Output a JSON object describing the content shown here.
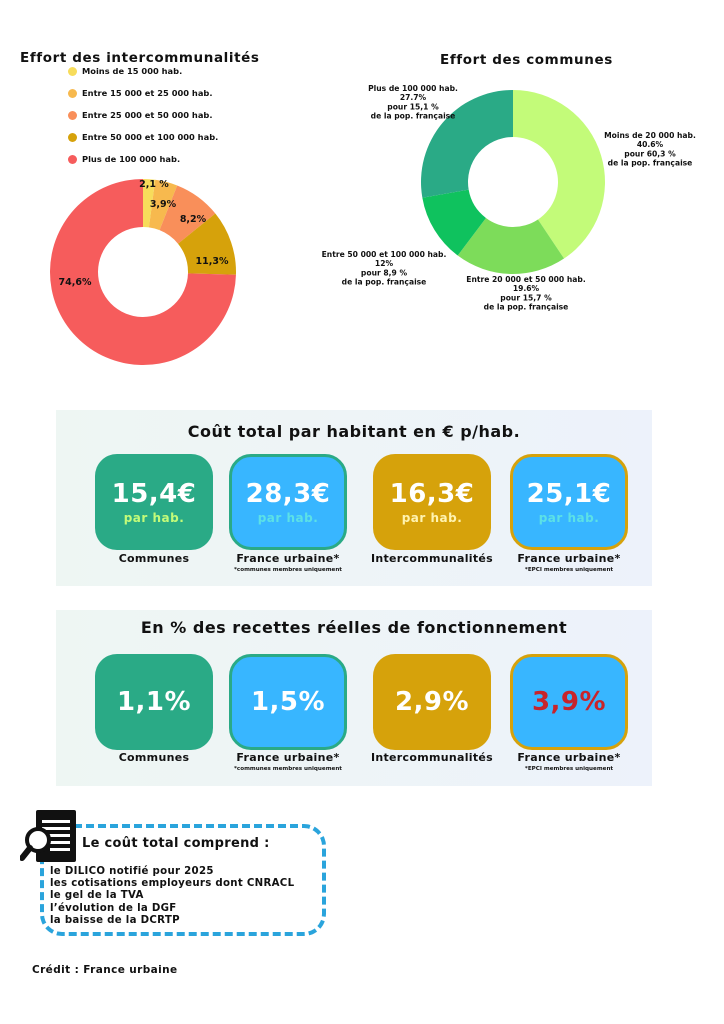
{
  "chart_data": [
    {
      "type": "pie",
      "title": "Effort des intercommunalités",
      "categories": [
        "Moins de 15 000 hab.",
        "Entre 15 000 et 25 000 hab.",
        "Entre 25 000 et 50 000 hab.",
        "Entre 50 000 et 100 000 hab.",
        "Plus de 100 000 hab."
      ],
      "values": [
        2.1,
        3.9,
        8.2,
        11.3,
        74.6
      ],
      "data_labels": [
        "2,1 %",
        "3,9%",
        "8,2%",
        "11,3%",
        "74,6%"
      ],
      "colors": [
        "#f7dc5b",
        "#f7b94e",
        "#f98f5a",
        "#d6a20b",
        "#f65c5c"
      ],
      "legend": "top-left"
    },
    {
      "type": "pie",
      "title": "Effort des communes",
      "categories": [
        "Moins de 20 000 hab.",
        "Entre 20 000 et 50 000 hab.",
        "Entre 50 000 et 100 000 hab.",
        "Plus de 100 000 hab."
      ],
      "values": [
        40.6,
        19.6,
        12,
        27.7
      ],
      "data_labels": [
        [
          "Moins de 20 000 hab.",
          "40.6%",
          "pour 60,3 %",
          "de la pop. française"
        ],
        [
          "Entre 20 000 et 50 000 hab.",
          "19.6%",
          "pour 15,7 %",
          "de la pop. française"
        ],
        [
          "Entre 50 000 et 100 000 hab.",
          "12%",
          "pour 8,9 %",
          "de la pop. française"
        ],
        [
          "Plus de 100 000 hab.",
          "27.7%",
          "pour 15,1 %",
          "de la pop. française"
        ]
      ],
      "colors": [
        "#c3fb79",
        "#7ddc5a",
        "#0fc25e",
        "#2aaa86"
      ]
    }
  ],
  "cost_section": {
    "title": "Coût total par habitant en € p/hab.",
    "cards": [
      {
        "value": "15,4€",
        "unit": "par hab.",
        "caption": "Communes",
        "note": ""
      },
      {
        "value": "28,3€",
        "unit": "par hab.",
        "caption": "France urbaine*",
        "note": "*communes membres uniquement"
      },
      {
        "value": "16,3€",
        "unit": "par hab.",
        "caption": "Intercommunalités",
        "note": ""
      },
      {
        "value": "25,1€",
        "unit": "par hab.",
        "caption": "France urbaine*",
        "note": "*EPCI membres uniquement"
      }
    ]
  },
  "pct_section": {
    "title": "En % des recettes réelles de fonctionnement",
    "cards": [
      {
        "value": "1,1%",
        "caption": "Communes",
        "note": ""
      },
      {
        "value": "1,5%",
        "caption": "France urbaine*",
        "note": "*communes membres uniquement"
      },
      {
        "value": "2,9%",
        "caption": "Intercommunalités",
        "note": ""
      },
      {
        "value": "3,9%",
        "caption": "France urbaine*",
        "note": "*EPCI membres uniquement"
      }
    ]
  },
  "colors": {
    "green_card": "#2aaa86",
    "blue_card": "#38b6ff",
    "gold_card": "#d6a20b",
    "unit_on_green": "#c3fb79",
    "unit_on_blue": "#5ce1e6",
    "unit_on_gold": "#fff3b0",
    "highlight_red": "#c8242b"
  },
  "cost_includes": {
    "title": "Le coût total comprend :",
    "items": [
      "le DILICO notifié pour 2025",
      "les cotisations employeurs dont CNRACL",
      "le gel de la TVA",
      "l’évolution de la DGF",
      "la baisse de la DCRTP"
    ]
  },
  "credit": "Crédit : France urbaine"
}
